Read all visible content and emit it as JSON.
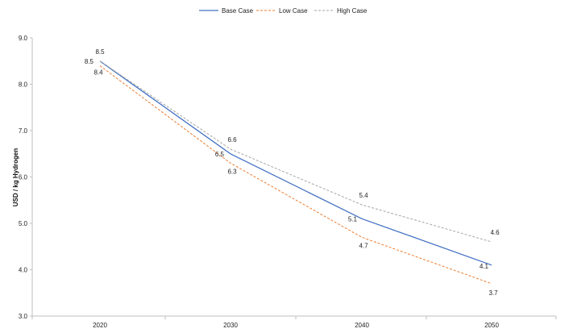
{
  "chart_data": {
    "type": "line",
    "title": "",
    "xlabel": "",
    "ylabel": "USD / kg Hydrogen",
    "categories": [
      "2020",
      "2030",
      "2040",
      "2050"
    ],
    "ylim": [
      3.0,
      9.0
    ],
    "yticks": [
      "3.0",
      "4.0",
      "5.0",
      "6.0",
      "7.0",
      "8.0",
      "9.0"
    ],
    "grid": false,
    "legend_position": "top-center",
    "series": [
      {
        "name": "Base Case",
        "values": [
          8.5,
          6.5,
          5.1,
          4.1
        ],
        "labels": [
          "8.5",
          "6.5",
          "5.1",
          "4.1"
        ],
        "color": "#4472c4",
        "dash": "solid"
      },
      {
        "name": "Low Case",
        "values": [
          8.4,
          6.3,
          4.7,
          3.7
        ],
        "labels": [
          "8.4",
          "6.3",
          "4.7",
          "3.7"
        ],
        "color": "#ed7d31",
        "dash": "dashed"
      },
      {
        "name": "High Case",
        "values": [
          8.5,
          6.6,
          5.4,
          4.6
        ],
        "labels": [
          "8.5",
          "6.6",
          "5.4",
          "4.6"
        ],
        "color": "#a5a5a5",
        "dash": "dashed"
      }
    ]
  }
}
